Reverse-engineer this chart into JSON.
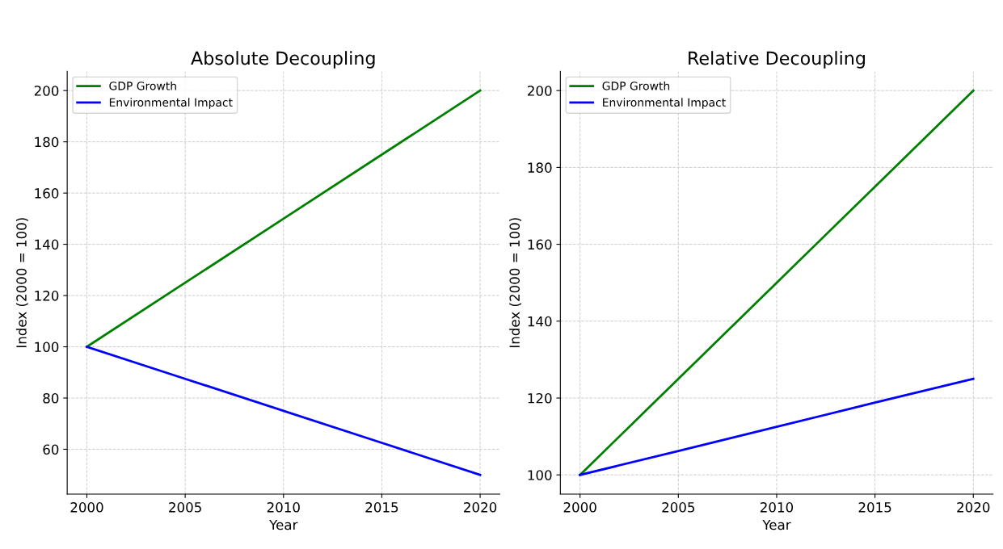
{
  "chart_data": [
    {
      "type": "line",
      "title": "Absolute Decoupling",
      "xlabel": "Year",
      "ylabel": "Index (2000 = 100)",
      "x": [
        2000,
        2005,
        2010,
        2015,
        2020
      ],
      "series": [
        {
          "name": "GDP Growth",
          "color": "#008000",
          "values": [
            100,
            125,
            150,
            175,
            200
          ]
        },
        {
          "name": "Environmental Impact",
          "color": "#0000ff",
          "values": [
            100,
            87.5,
            75,
            62.5,
            50
          ]
        }
      ],
      "xlim": [
        1999,
        2021
      ],
      "xticks": [
        2000,
        2005,
        2010,
        2015,
        2020
      ],
      "ylim": [
        42.5,
        207.5
      ],
      "yticks": [
        60,
        80,
        100,
        120,
        140,
        160,
        180,
        200
      ],
      "grid": true,
      "legend": "top left"
    },
    {
      "type": "line",
      "title": "Relative Decoupling",
      "xlabel": "Year",
      "ylabel": "Index (2000 = 100)",
      "x": [
        2000,
        2005,
        2010,
        2015,
        2020
      ],
      "series": [
        {
          "name": "GDP Growth",
          "color": "#008000",
          "values": [
            100,
            125,
            150,
            175,
            200
          ]
        },
        {
          "name": "Environmental Impact",
          "color": "#0000ff",
          "values": [
            100,
            106.2,
            112.5,
            118.8,
            125
          ]
        }
      ],
      "xlim": [
        1999,
        2021
      ],
      "xticks": [
        2000,
        2005,
        2010,
        2015,
        2020
      ],
      "ylim": [
        95,
        205
      ],
      "yticks": [
        100,
        120,
        140,
        160,
        180,
        200
      ],
      "grid": true,
      "legend": "top left"
    }
  ]
}
